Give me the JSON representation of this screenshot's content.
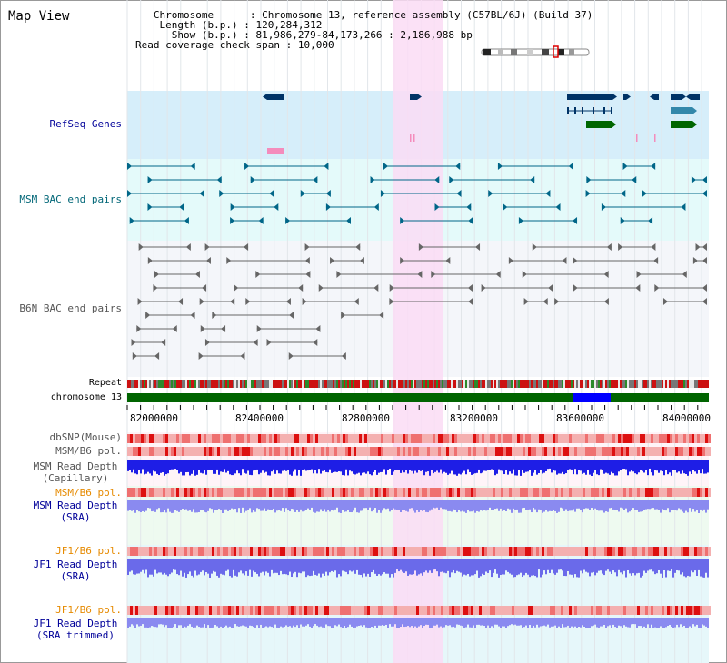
{
  "title": "Map View",
  "info": {
    "chromosome_label": "Chromosome",
    "chromosome_value": "Chromosome 13, reference assembly (C57BL/6J) (Build 37)",
    "length_label": "Length (b.p.)",
    "length_value": "120,284,312",
    "show_label": "Show (b.p.)",
    "show_value": "81,986,279-84,173,266 : 2,186,988 bp",
    "coverage_label": "Read coverage check span",
    "coverage_value": "10,000"
  },
  "tracks": {
    "refseq": "RefSeq Genes",
    "msm_bac": "MSM BAC end pairs",
    "b6n_bac": "B6N BAC end pairs",
    "repeat": "Repeat",
    "chromosome": "chromosome 13",
    "dbsnp": "dbSNP(Mouse)",
    "msm_b6_pol": "MSM/B6 pol.",
    "msm_depth_cap_1": "MSM Read Depth",
    "msm_depth_cap_2": "(Capillary)",
    "msm_b6_pol_2": "MSM/B6 pol.",
    "msm_depth_sra_1": "MSM Read Depth",
    "msm_depth_sra_2": "(SRA)",
    "jf1_b6_pol": "JF1/B6 pol.",
    "jf1_depth_sra_1": "JF1 Read Depth",
    "jf1_depth_sra_2": "(SRA)",
    "jf1_b6_pol_2": "JF1/B6 pol.",
    "jf1_depth_trim_1": "JF1 Read Depth",
    "jf1_depth_trim_2": "(SRA trimmed)"
  },
  "axis_ticks": [
    "82000000",
    "82400000",
    "82800000",
    "83200000",
    "83600000",
    "84000000"
  ],
  "colors": {
    "refseq_bg": "#d6eefa",
    "msm_bg": "#e4fafa",
    "b6n_bg": "#f4f6fa",
    "highlight": "#fadcf4",
    "gene_dark": "#003366",
    "gene_teal": "#3388aa",
    "gene_green": "#006600",
    "msm_pair": "#006688",
    "b6n_pair": "#666666",
    "chrom_green": "#006400",
    "chrom_blue": "#0000ff",
    "label_navy": "#000099",
    "label_teal": "#006677",
    "label_grey": "#555555",
    "label_orange": "#e68a00"
  }
}
